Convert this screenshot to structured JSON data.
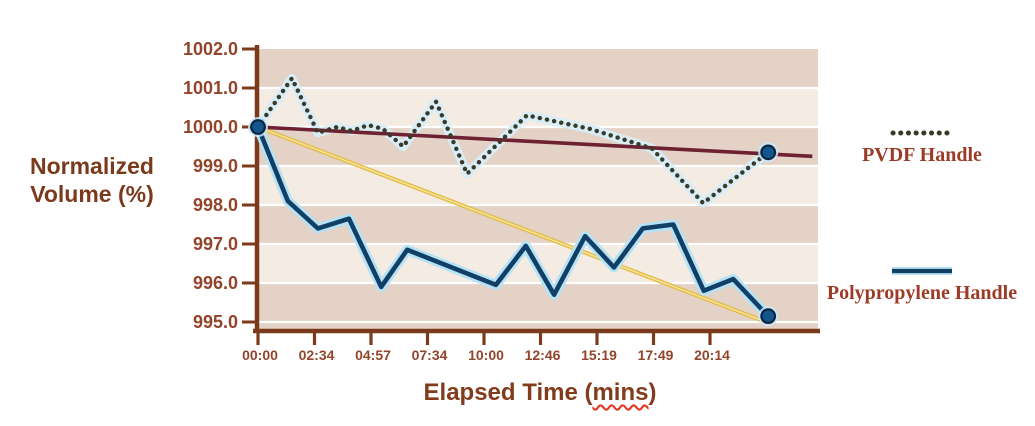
{
  "labels": {
    "y_axis_title_line1": "Normalized",
    "y_axis_title_line2": "Volume (%)",
    "x_axis_title_prefix": "Elapsed Time (",
    "x_axis_title_word": "mins",
    "x_axis_title_suffix": ")"
  },
  "legend": {
    "pvdf_label": "PVDF Handle",
    "poly_label": "Polypropylene Handle"
  },
  "colors": {
    "axis": "#7c3a1d",
    "tick_label": "#93442a",
    "band_dark": "#e3d2c5",
    "band_light": "#f4ebe2",
    "gridline": "#ffffff",
    "legend_text": "#9c3c28",
    "pvdf_dot": "#3a3a28",
    "pvdf_halo": "#d9edf7",
    "poly_line": "#123f66",
    "poly_halo": "#b5e2f4",
    "pvdf_trend": "#6e2132",
    "poly_trend": "#e3bd4a",
    "poly_trend_highlight": "#f7e49c",
    "marker_fill": "#13568c",
    "marker_stroke": "#0a2540",
    "marker_halo": "#c9e9fa",
    "squiggle": "#e8301c"
  },
  "chart_data": {
    "type": "line",
    "title": "",
    "xlabel": "Elapsed Time (mins)",
    "ylabel": "Normalized Volume (%)",
    "x_axis": {
      "tick_labels": [
        "00:00",
        "02:34",
        "04:57",
        "07:34",
        "10:00",
        "12:46",
        "15:19",
        "17:49",
        "20:14"
      ],
      "note": "data extends about one tick interval beyond the last label"
    },
    "y_axis": {
      "tick_labels": [
        "1002.0",
        "1001.0",
        "1000.0",
        "999.0",
        "998.0",
        "997.0",
        "996.0",
        "995.0"
      ],
      "min": 995.0,
      "max": 1002.0,
      "grid": true
    },
    "legend_position": "right",
    "series": [
      {
        "name": "PVDF Handle",
        "style": "dotted",
        "points": [
          [
            0,
            1000.0
          ],
          [
            0.6,
            1001.25
          ],
          [
            1.06,
            999.85
          ],
          [
            1.4,
            1000.0
          ],
          [
            1.66,
            999.9
          ],
          [
            1.95,
            1000.05
          ],
          [
            2.21,
            999.95
          ],
          [
            2.57,
            999.5
          ],
          [
            3.15,
            1000.65
          ],
          [
            3.7,
            998.8
          ],
          [
            4.76,
            1000.3
          ],
          [
            5.88,
            999.95
          ],
          [
            6.97,
            999.45
          ],
          [
            7.88,
            998.05
          ],
          [
            9.03,
            999.35
          ]
        ]
      },
      {
        "name": "Polypropylene Handle",
        "style": "solid",
        "points": [
          [
            0,
            1000.0
          ],
          [
            0.53,
            998.1
          ],
          [
            1.06,
            997.4
          ],
          [
            1.61,
            997.65
          ],
          [
            2.18,
            995.9
          ],
          [
            2.64,
            996.85
          ],
          [
            4.21,
            995.95
          ],
          [
            4.74,
            996.95
          ],
          [
            5.24,
            995.7
          ],
          [
            5.79,
            997.2
          ],
          [
            6.3,
            996.4
          ],
          [
            6.81,
            997.4
          ],
          [
            7.35,
            997.5
          ],
          [
            7.89,
            995.8
          ],
          [
            8.41,
            996.1
          ],
          [
            9.03,
            995.15
          ]
        ]
      },
      {
        "name": "PVDF Handle trendline",
        "style": "trend-maroon",
        "points": [
          [
            0,
            1000.0
          ],
          [
            9.81,
            999.25
          ]
        ]
      },
      {
        "name": "Polypropylene Handle trendline",
        "style": "trend-gold",
        "points": [
          [
            0,
            1000.0
          ],
          [
            8.99,
            995.0
          ]
        ]
      }
    ],
    "markers": [
      {
        "label": "start point (both series)",
        "t": 0,
        "v": 1000.0
      },
      {
        "label": "PVDF Handle end point",
        "t": 9.03,
        "v": 999.35
      },
      {
        "label": "Polypropylene Handle end point",
        "t": 9.03,
        "v": 995.15
      }
    ]
  }
}
